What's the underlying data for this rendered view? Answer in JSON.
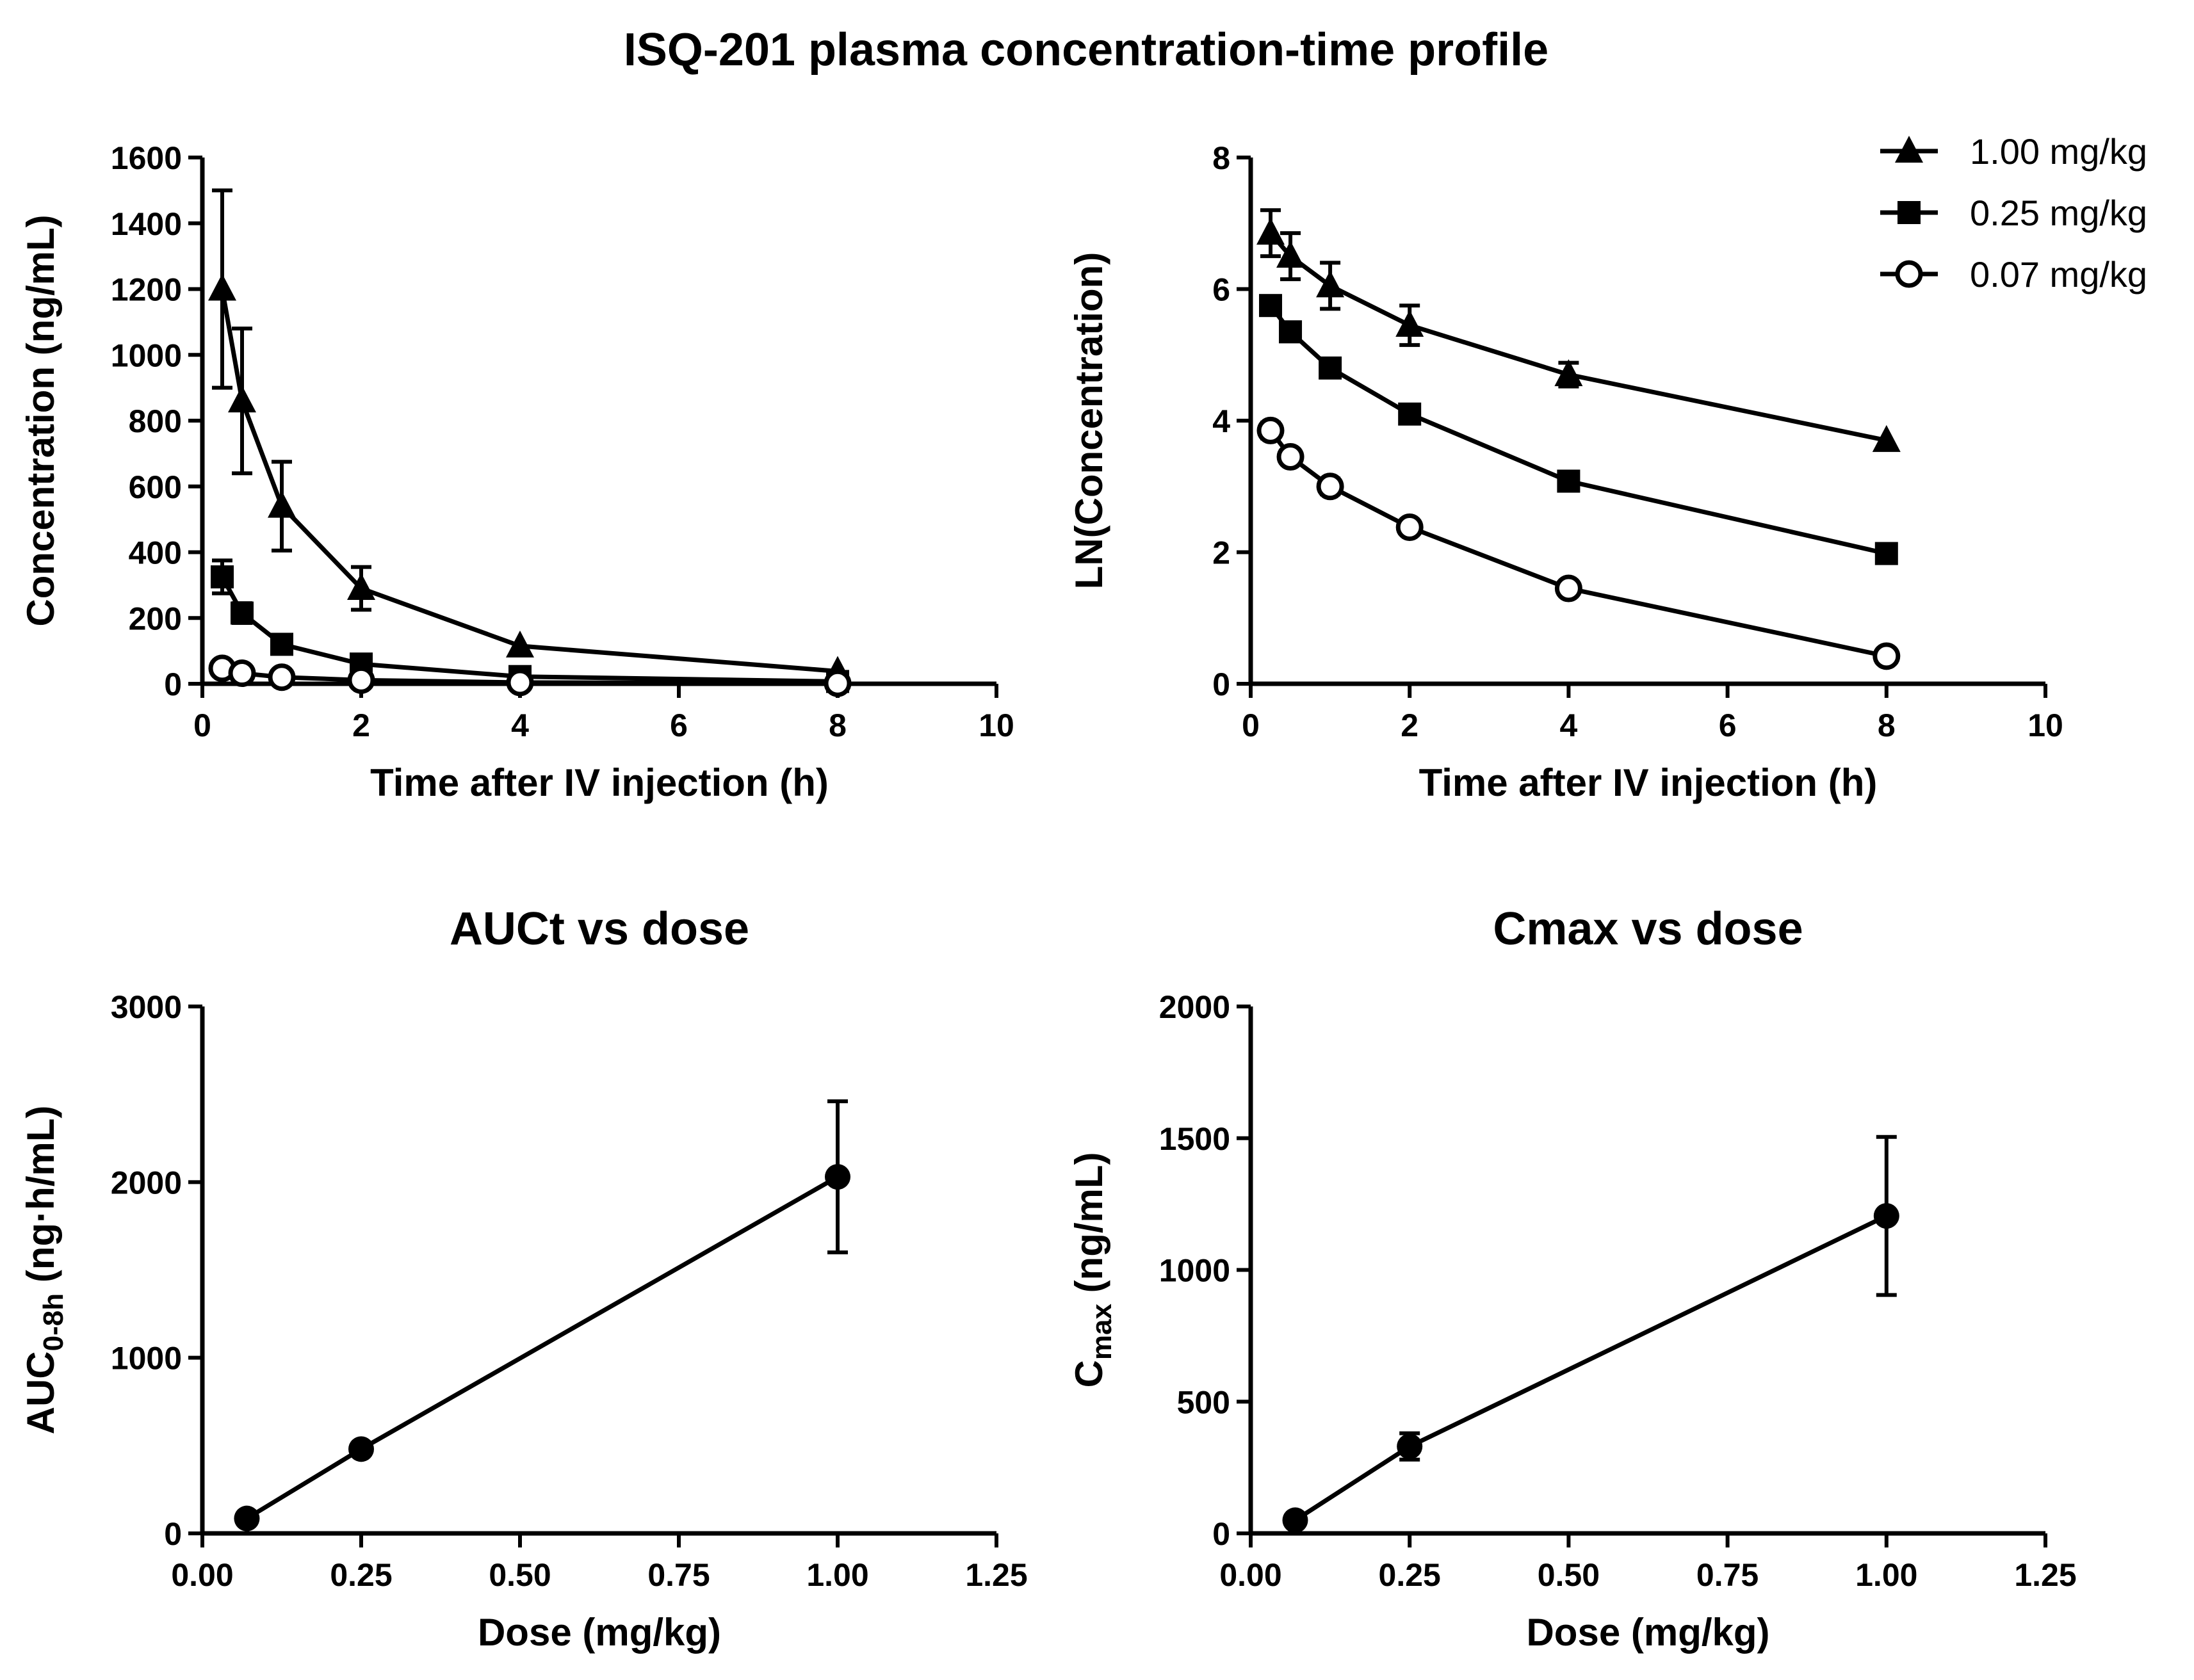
{
  "figure_title": "ISQ-201 plasma concentration-time profile",
  "legend": [
    {
      "label": "1.00 mg/kg",
      "marker": "triangle-filled"
    },
    {
      "label": "0.25 mg/kg",
      "marker": "square-filled"
    },
    {
      "label": "0.07 mg/kg",
      "marker": "circle-open"
    }
  ],
  "chart_data": [
    {
      "id": "conc",
      "type": "line",
      "title": "",
      "xlabel": "Time after IV injection (h)",
      "ylabel": "Concentration (ng/mL)",
      "xlim": [
        0,
        10
      ],
      "ylim": [
        0,
        1600
      ],
      "xticks": [
        0,
        2,
        4,
        6,
        8,
        10
      ],
      "yticks": [
        0,
        200,
        400,
        600,
        800,
        1000,
        1200,
        1400,
        1600
      ],
      "x": [
        0.25,
        0.5,
        1,
        2,
        4,
        8
      ],
      "series": [
        {
          "name": "1.00 mg/kg",
          "marker": "triangle",
          "values": [
            1200,
            860,
            540,
            290,
            115,
            38
          ],
          "errors": [
            300,
            220,
            135,
            65,
            0,
            0
          ]
        },
        {
          "name": "0.25 mg/kg",
          "marker": "square",
          "values": [
            325,
            215,
            120,
            60,
            22,
            7
          ],
          "errors": [
            50,
            30,
            0,
            0,
            0,
            0
          ]
        },
        {
          "name": "0.07 mg/kg",
          "marker": "circle",
          "values": [
            47,
            32,
            20,
            11,
            4,
            1.5
          ],
          "errors": [
            0,
            0,
            0,
            0,
            0,
            0
          ]
        }
      ]
    },
    {
      "id": "ln",
      "type": "line",
      "title": "",
      "xlabel": "Time after IV injection (h)",
      "ylabel": "LN(Concentration)",
      "xlim": [
        0,
        10
      ],
      "ylim": [
        0,
        8
      ],
      "xticks": [
        0,
        2,
        4,
        6,
        8,
        10
      ],
      "yticks": [
        0,
        2,
        4,
        6,
        8
      ],
      "x": [
        0.25,
        0.5,
        1,
        2,
        4,
        8
      ],
      "series": [
        {
          "name": "1.00 mg/kg",
          "marker": "triangle",
          "values": [
            6.85,
            6.5,
            6.05,
            5.45,
            4.7,
            3.7
          ],
          "errors": [
            0.35,
            0.35,
            0.35,
            0.3,
            0.18,
            0
          ]
        },
        {
          "name": "0.25 mg/kg",
          "marker": "square",
          "values": [
            5.75,
            5.35,
            4.8,
            4.1,
            3.08,
            1.98
          ],
          "errors": [
            0.12,
            0.1,
            0,
            0,
            0,
            0
          ]
        },
        {
          "name": "0.07 mg/kg",
          "marker": "circle",
          "values": [
            3.85,
            3.45,
            3.0,
            2.38,
            1.45,
            0.42
          ],
          "errors": [
            0.12,
            0.1,
            0.12,
            0,
            0,
            0
          ]
        }
      ]
    },
    {
      "id": "auc",
      "type": "line",
      "title": "AUCt vs dose",
      "xlabel": "Dose (mg/kg)",
      "ylabel_main": "AUC",
      "ylabel_sub": "0-8h",
      "ylabel_rest": " (ng·h/mL)",
      "xlim": [
        0,
        1.25
      ],
      "ylim": [
        0,
        3000
      ],
      "xticks": [
        0.0,
        0.25,
        0.5,
        0.75,
        1.0,
        1.25
      ],
      "xtick_labels": [
        "0.00",
        "0.25",
        "0.50",
        "0.75",
        "1.00",
        "1.25"
      ],
      "yticks": [
        0,
        1000,
        2000,
        3000
      ],
      "x": [
        0.07,
        0.25,
        1.0
      ],
      "series": [
        {
          "name": "AUC",
          "marker": "circle-filled",
          "values": [
            85,
            480,
            2030
          ],
          "errors": [
            0,
            0,
            430
          ]
        }
      ]
    },
    {
      "id": "cmax",
      "type": "line",
      "title": "Cmax vs dose",
      "xlabel": "Dose (mg/kg)",
      "ylabel_main": "C",
      "ylabel_sub": "max",
      "ylabel_rest": " (ng/mL)",
      "xlim": [
        0,
        1.25
      ],
      "ylim": [
        0,
        2000
      ],
      "xticks": [
        0.0,
        0.25,
        0.5,
        0.75,
        1.0,
        1.25
      ],
      "xtick_labels": [
        "0.00",
        "0.25",
        "0.50",
        "0.75",
        "1.00",
        "1.25"
      ],
      "yticks": [
        0,
        500,
        1000,
        1500,
        2000
      ],
      "x": [
        0.07,
        0.25,
        1.0
      ],
      "series": [
        {
          "name": "Cmax",
          "marker": "circle-filled",
          "values": [
            50,
            330,
            1205
          ],
          "errors": [
            0,
            50,
            300
          ]
        }
      ]
    }
  ]
}
